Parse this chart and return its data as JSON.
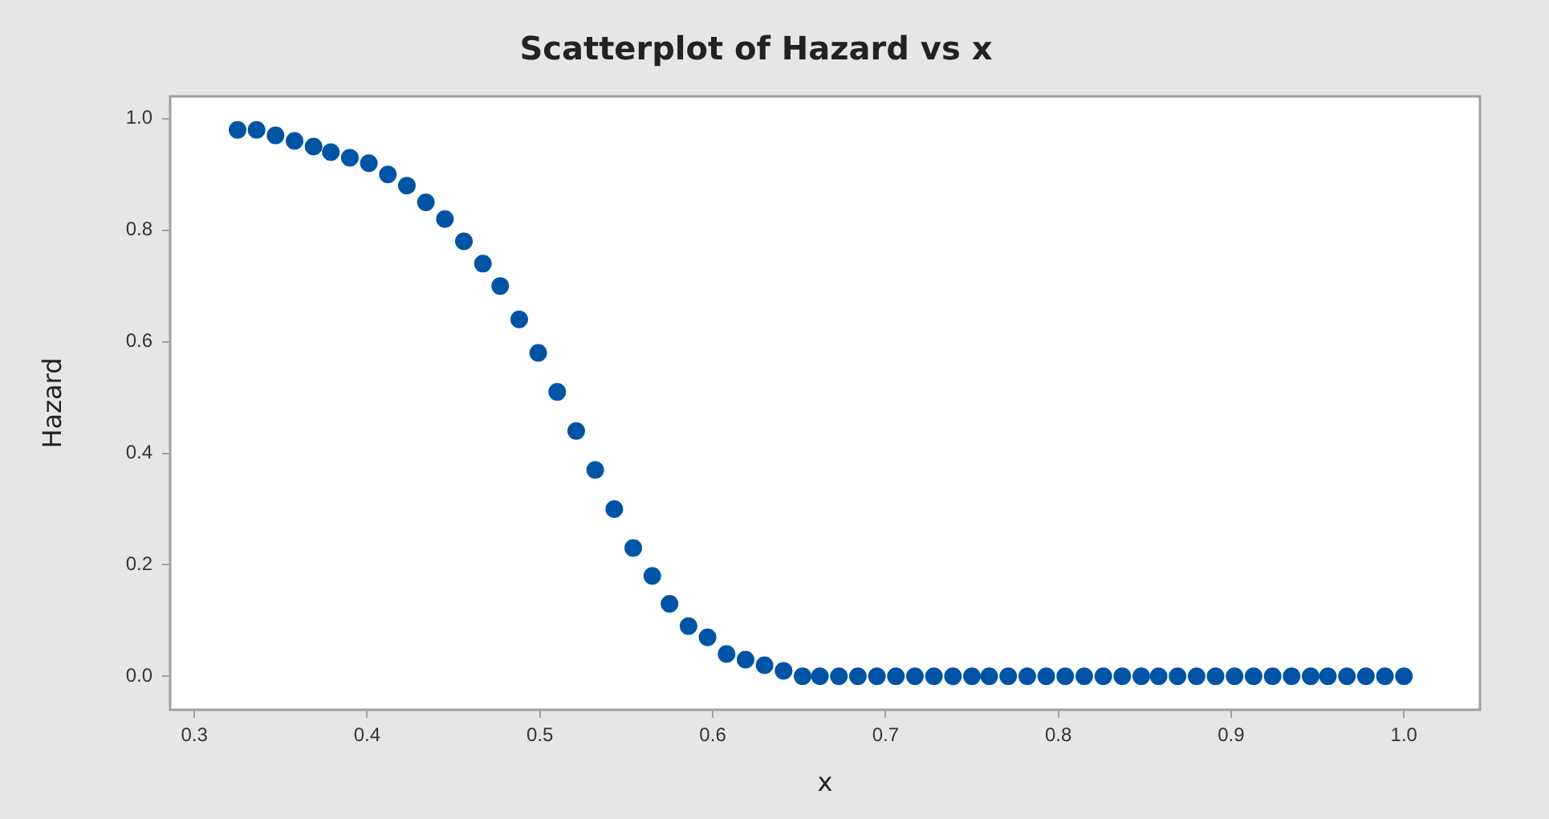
{
  "chart_data": {
    "type": "scatter",
    "title": "Scatterplot of Hazard vs x",
    "xlabel": "x",
    "ylabel": "Hazard",
    "x": [
      0.325,
      0.336,
      0.347,
      0.358,
      0.369,
      0.379,
      0.39,
      0.401,
      0.412,
      0.423,
      0.434,
      0.445,
      0.456,
      0.467,
      0.477,
      0.488,
      0.499,
      0.51,
      0.521,
      0.532,
      0.543,
      0.554,
      0.565,
      0.575,
      0.586,
      0.597,
      0.608,
      0.619,
      0.63,
      0.641,
      0.652,
      0.662,
      0.673,
      0.684,
      0.695,
      0.706,
      0.717,
      0.728,
      0.739,
      0.75,
      0.76,
      0.771,
      0.782,
      0.793,
      0.804,
      0.815,
      0.826,
      0.837,
      0.848,
      0.858,
      0.869,
      0.88,
      0.891,
      0.902,
      0.913,
      0.924,
      0.935,
      0.946,
      0.956,
      0.967,
      0.978,
      0.989,
      1.0
    ],
    "series": [
      {
        "color": "#0054a6",
        "values": [
          0.98,
          0.98,
          0.97,
          0.96,
          0.95,
          0.94,
          0.93,
          0.92,
          0.9,
          0.88,
          0.85,
          0.82,
          0.78,
          0.74,
          0.7,
          0.64,
          0.58,
          0.51,
          0.44,
          0.37,
          0.3,
          0.23,
          0.18,
          0.13,
          0.09,
          0.07,
          0.04,
          0.03,
          0.02,
          0.01,
          0,
          0,
          0,
          0,
          0,
          0,
          0,
          0,
          0,
          0,
          0,
          0,
          0,
          0,
          0,
          0,
          0,
          0,
          0,
          0,
          0,
          0,
          0,
          0,
          0,
          0,
          0,
          0,
          0,
          0,
          0,
          0,
          0
        ]
      }
    ],
    "xlim": [
      0.286,
      1.044
    ],
    "xticks": [
      {
        "value": 0.3,
        "label": "0.3"
      },
      {
        "value": 0.4,
        "label": "0.4"
      },
      {
        "value": 0.5,
        "label": "0.5"
      },
      {
        "value": 0.6,
        "label": "0.6"
      },
      {
        "value": 0.7,
        "label": "0.7"
      },
      {
        "value": 0.8,
        "label": "0.8"
      },
      {
        "value": 0.9,
        "label": "0.9"
      },
      {
        "value": 1.0,
        "label": "1.0"
      }
    ],
    "ylim": [
      -0.06,
      1.04
    ],
    "yticks": [
      {
        "value": 0,
        "label": "0.0"
      },
      {
        "value": 0.2,
        "label": "0.2"
      },
      {
        "value": 0.4,
        "label": "0.4"
      },
      {
        "value": 0.6,
        "label": "0.6"
      },
      {
        "value": 0.8,
        "label": "0.8"
      },
      {
        "value": 1.0,
        "label": "1.0"
      }
    ],
    "grid": false,
    "legend": false,
    "marker": "circle"
  }
}
